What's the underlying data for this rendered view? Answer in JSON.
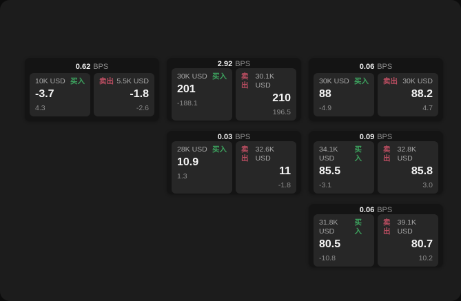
{
  "page": {
    "backdrop_color": "#0c0c0c",
    "background_color": "#1c1c1c"
  },
  "colors": {
    "buy_green": "#3da45f",
    "sell_red": "#bd4e62",
    "price_white": "#f5f5f5",
    "label_gray": "#a8a8a8",
    "delta_gray": "#8d8d8d",
    "card_bg": "#141414",
    "tile_bg": "#272727"
  },
  "cards": [
    {
      "spread": "0.62",
      "spread_unit": "BPS",
      "grid": {
        "row": 1,
        "col": 1
      },
      "buy": {
        "notional": "10K USD",
        "side_label": "买入",
        "price": "-3.7",
        "delta": "4.3"
      },
      "sell": {
        "side_label": "卖出",
        "notional": "5.5K USD",
        "price": "-1.8",
        "delta": "-2.6"
      }
    },
    {
      "spread": "2.92",
      "spread_unit": "BPS",
      "grid": {
        "row": 1,
        "col": 2
      },
      "buy": {
        "notional": "30K USD",
        "side_label": "买入",
        "price": "201",
        "delta": "-188.1"
      },
      "sell": {
        "side_label": "卖出",
        "notional": "30.1K USD",
        "price": "210",
        "delta": "196.5"
      }
    },
    {
      "spread": "0.06",
      "spread_unit": "BPS",
      "grid": {
        "row": 1,
        "col": 3
      },
      "buy": {
        "notional": "30K USD",
        "side_label": "买入",
        "price": "88",
        "delta": "-4.9"
      },
      "sell": {
        "side_label": "卖出",
        "notional": "30K USD",
        "price": "88.2",
        "delta": "4.7"
      }
    },
    {
      "spread": "0.03",
      "spread_unit": "BPS",
      "grid": {
        "row": 2,
        "col": 2
      },
      "buy": {
        "notional": "28K USD",
        "side_label": "买入",
        "price": "10.9",
        "delta": "1.3"
      },
      "sell": {
        "side_label": "卖出",
        "notional": "32.6K USD",
        "price": "11",
        "delta": "-1.8"
      }
    },
    {
      "spread": "0.09",
      "spread_unit": "BPS",
      "grid": {
        "row": 2,
        "col": 3
      },
      "buy": {
        "notional": "34.1K USD",
        "side_label": "买入",
        "price": "85.5",
        "delta": "-3.1"
      },
      "sell": {
        "side_label": "卖出",
        "notional": "32.8K USD",
        "price": "85.8",
        "delta": "3.0"
      }
    },
    {
      "spread": "0.06",
      "spread_unit": "BPS",
      "grid": {
        "row": 3,
        "col": 3
      },
      "buy": {
        "notional": "31.8K USD",
        "side_label": "买入",
        "price": "80.5",
        "delta": "-10.8"
      },
      "sell": {
        "side_label": "卖出",
        "notional": "39.1K USD",
        "price": "80.7",
        "delta": "10.2"
      }
    }
  ]
}
